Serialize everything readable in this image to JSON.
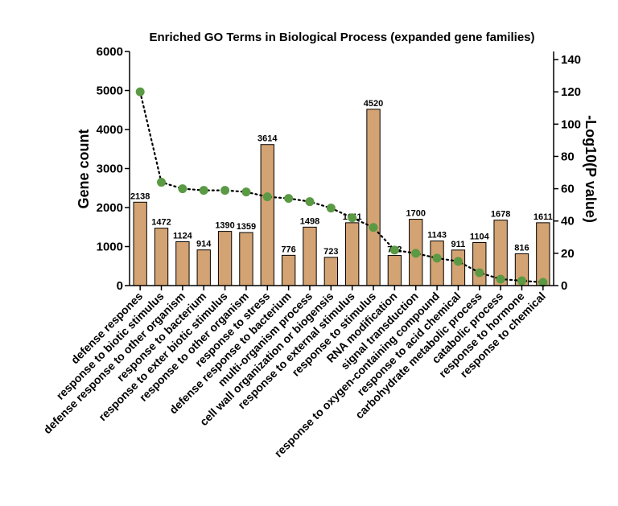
{
  "chart_data": {
    "type": "bar",
    "title": "Enriched GO Terms in Biological Process (expanded gene families)",
    "xlabel": "",
    "ylabel": "Gene count",
    "y2label": "-Log10(P value)",
    "ylim": [
      0,
      6000
    ],
    "y2lim": [
      0,
      145
    ],
    "yticks": [
      0,
      1000,
      2000,
      3000,
      4000,
      5000,
      6000
    ],
    "y2ticks": [
      0,
      20,
      40,
      60,
      80,
      100,
      120,
      140
    ],
    "categories": [
      "defense respones",
      "response to biotic stimulus",
      "defense response to other organism",
      "response to bacterium",
      "response to exter biotic stimulus",
      "response to other organism",
      "response to stress",
      "defense response to bacterium",
      "multi-organism process",
      "cell wall organization or biogensis",
      "response to external stimulus",
      "response to stimulus",
      "RNA modification",
      "signal transduction",
      "response to oxygen-containing compound",
      "response to acid chemical",
      "carbohydrate metabolic process",
      "catabolic process",
      "response to hormone",
      "response to chemical"
    ],
    "series": [
      {
        "name": "Gene count",
        "kind": "bar",
        "axis": "left",
        "color": "#D4A373",
        "values": [
          2138,
          1472,
          1124,
          914,
          1390,
          1359,
          3614,
          776,
          1498,
          723,
          1611,
          4520,
          772,
          1700,
          1143,
          911,
          1104,
          1678,
          816,
          1611
        ],
        "labels": [
          "2138",
          "1472",
          "1124",
          "914",
          "1390",
          "1359",
          "3614",
          "776",
          "1498",
          "723",
          "1611",
          "4520",
          "772",
          "1700",
          "1143",
          "911",
          "1104",
          "1678",
          "816",
          "1611"
        ]
      },
      {
        "name": "-Log10(P value)",
        "kind": "line-dotted-points",
        "axis": "right",
        "color": "#5A9A44",
        "values": [
          120,
          64,
          60,
          59,
          59,
          58,
          55,
          54,
          52,
          48,
          42,
          36,
          22,
          20,
          17,
          15,
          8,
          4,
          3,
          2
        ]
      }
    ],
    "grid": false,
    "legend": "none"
  }
}
